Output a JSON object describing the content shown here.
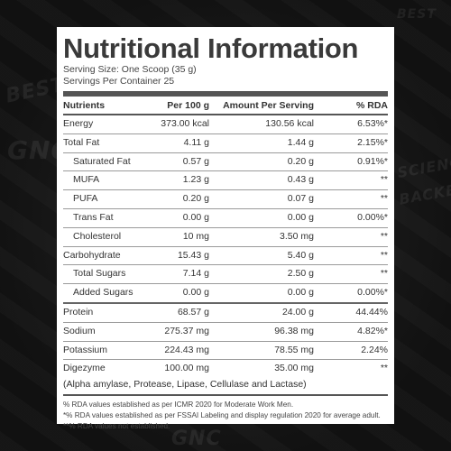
{
  "title": "Nutritional Information",
  "serving_size": "Serving Size: One Scoop (35 g)",
  "servings_per_container": "Servings Per Container 25",
  "headers": {
    "nutrients": "Nutrients",
    "per100": "Per 100 g",
    "per_serving": "Amount Per Serving",
    "rda": "% RDA"
  },
  "rows": [
    {
      "name": "Energy",
      "per100": "373.00 kcal",
      "serving": "130.56 kcal",
      "rda": "6.53%*",
      "sub": false
    },
    {
      "name": "Total Fat",
      "per100": "4.11 g",
      "serving": "1.44 g",
      "rda": "2.15%*",
      "sub": false
    },
    {
      "name": "Saturated Fat",
      "per100": "0.57 g",
      "serving": "0.20 g",
      "rda": "0.91%*",
      "sub": true
    },
    {
      "name": "MUFA",
      "per100": "1.23 g",
      "serving": "0.43 g",
      "rda": "**",
      "sub": true
    },
    {
      "name": "PUFA",
      "per100": "0.20 g",
      "serving": "0.07 g",
      "rda": "**",
      "sub": true
    },
    {
      "name": "Trans Fat",
      "per100": "0.00 g",
      "serving": "0.00 g",
      "rda": "0.00%*",
      "sub": true
    },
    {
      "name": "Cholesterol",
      "per100": "10 mg",
      "serving": "3.50 mg",
      "rda": "**",
      "sub": true
    },
    {
      "name": "Carbohydrate",
      "per100": "15.43 g",
      "serving": "5.40 g",
      "rda": "**",
      "sub": false
    },
    {
      "name": "Total Sugars",
      "per100": "7.14 g",
      "serving": "2.50 g",
      "rda": "**",
      "sub": true
    },
    {
      "name": "Added Sugars",
      "per100": "0.00 g",
      "serving": "0.00 g",
      "rda": "0.00%*",
      "sub": true
    },
    {
      "name": "Protein",
      "per100": "68.57 g",
      "serving": "24.00 g",
      "rda": "44.44%",
      "sub": false
    },
    {
      "name": "Sodium",
      "per100": "275.37 mg",
      "serving": "96.38 mg",
      "rda": "4.82%*",
      "sub": false
    },
    {
      "name": "Potassium",
      "per100": "224.43 mg",
      "serving": "78.55 mg",
      "rda": "2.24%",
      "sub": false
    },
    {
      "name": "Digezyme",
      "per100": "100.00 mg",
      "serving": "35.00 mg",
      "rda": "**",
      "sub": false
    }
  ],
  "digezyme_note": "(Alpha amylase, Protease, Lipase, Cellulase and Lactase)",
  "footnotes": [
    "% RDA values established as per ICMR 2020 for Moderate Work Men.",
    "*% RDA values established as per FSSAI Labeling and display regulation 2020 for average adult.",
    "**% RDA values not established."
  ],
  "background_words": [
    "BEST",
    "GNC",
    "SCIENCE",
    "BACKED",
    "GNC",
    "BEST"
  ],
  "colors": {
    "panel": "#ffffff",
    "background": "#161616",
    "text": "#333333"
  }
}
